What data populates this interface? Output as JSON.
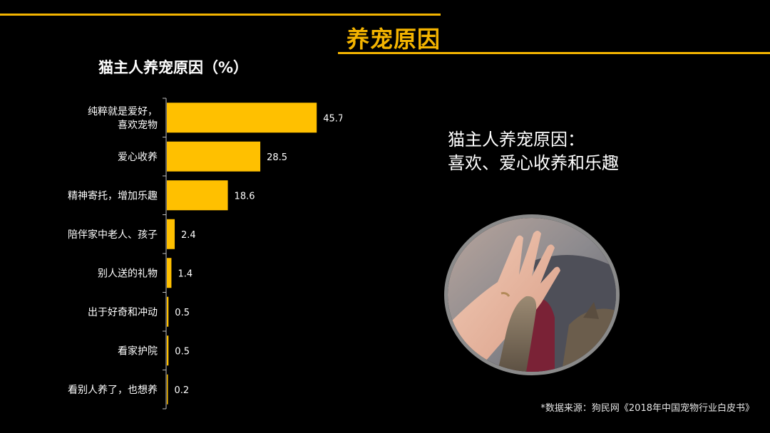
{
  "page": {
    "title": "养宠原因",
    "summary_line1": "猫主人养宠原因：",
    "summary_line2": "喜欢、爱心收养和乐趣",
    "source": "*数据来源：狗民网《2018年中国宠物行业白皮书》",
    "accent_color": "#f4b400"
  },
  "chart_data": {
    "type": "bar",
    "orientation": "horizontal",
    "title": "猫主人养宠原因（%）",
    "categories": [
      "纯粹就是爱好，喜欢宠物",
      "爱心收养",
      "精神寄托，增加乐趣",
      "陪伴家中老人、孩子",
      "别人送的礼物",
      "出于好奇和冲动",
      "看家护院",
      "看别人养了，也想养"
    ],
    "category_lines": [
      [
        "纯粹就是爱好，",
        "喜欢宠物"
      ],
      [
        "爱心收养"
      ],
      [
        "精神寄托，增加乐趣"
      ],
      [
        "陪伴家中老人、孩子"
      ],
      [
        "别人送的礼物"
      ],
      [
        "出于好奇和冲动"
      ],
      [
        "看家护院"
      ],
      [
        "看别人养了，也想养"
      ]
    ],
    "values": [
      45.7,
      28.5,
      18.6,
      2.4,
      1.4,
      0.5,
      0.5,
      0.2
    ],
    "value_labels": [
      "45.7",
      "28.5",
      "18.6",
      "2.4",
      "1.4",
      "0.5",
      "0.5",
      "0.2"
    ],
    "xlim": [
      0,
      50
    ],
    "bar_color": "#ffc000",
    "grid": false,
    "legend": "none"
  }
}
